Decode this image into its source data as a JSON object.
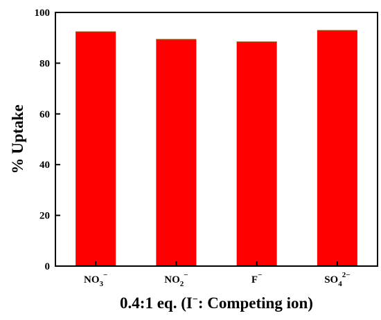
{
  "chart_data": {
    "type": "bar",
    "categories": [
      {
        "base": "NO",
        "sub": "3",
        "sup": "−"
      },
      {
        "base": "NO",
        "sub": "2",
        "sup": "−"
      },
      {
        "base": "F",
        "sub": "",
        "sup": "−"
      },
      {
        "base": "SO",
        "sub": "4",
        "sup": "2−"
      }
    ],
    "values": [
      92.5,
      89.5,
      88.5,
      93
    ],
    "ylabel": "% Uptake",
    "xlabel_parts": {
      "pre": "0.4:1 eq. (I",
      "sup": "−",
      "post": ": Competing ion)"
    },
    "ylim": [
      0,
      100
    ],
    "yticks": [
      0,
      20,
      40,
      60,
      80,
      100
    ],
    "grid": false,
    "bar_color": "#ff0000",
    "bar_top_color": "#8b4513"
  }
}
